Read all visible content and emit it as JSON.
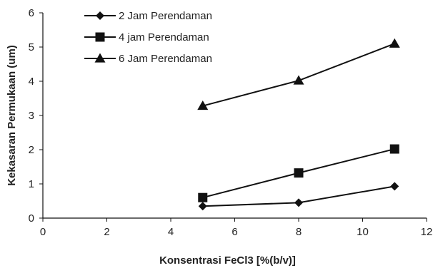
{
  "chart_data": {
    "type": "line",
    "xlabel": "Konsentrasi FeCl3 [%(b/v)]",
    "ylabel": "Kekasaran Permukaan (um)",
    "xlim": [
      0,
      12
    ],
    "ylim": [
      0,
      6
    ],
    "x_ticks": [
      0,
      2,
      4,
      6,
      8,
      10,
      12
    ],
    "y_ticks": [
      0,
      1,
      2,
      3,
      4,
      5,
      6
    ],
    "grid": false,
    "legend_position": "top-left",
    "line_color": "#111111",
    "series": [
      {
        "name": "2 Jam Perendaman",
        "marker": "diamond",
        "x": [
          5,
          8,
          11
        ],
        "y": [
          0.35,
          0.45,
          0.93
        ]
      },
      {
        "name": "4 jam Perendaman",
        "marker": "square",
        "x": [
          5,
          8,
          11
        ],
        "y": [
          0.6,
          1.32,
          2.02
        ]
      },
      {
        "name": "6 Jam Perendaman",
        "marker": "triangle",
        "x": [
          5,
          8,
          11
        ],
        "y": [
          3.28,
          4.02,
          5.1
        ]
      }
    ]
  }
}
